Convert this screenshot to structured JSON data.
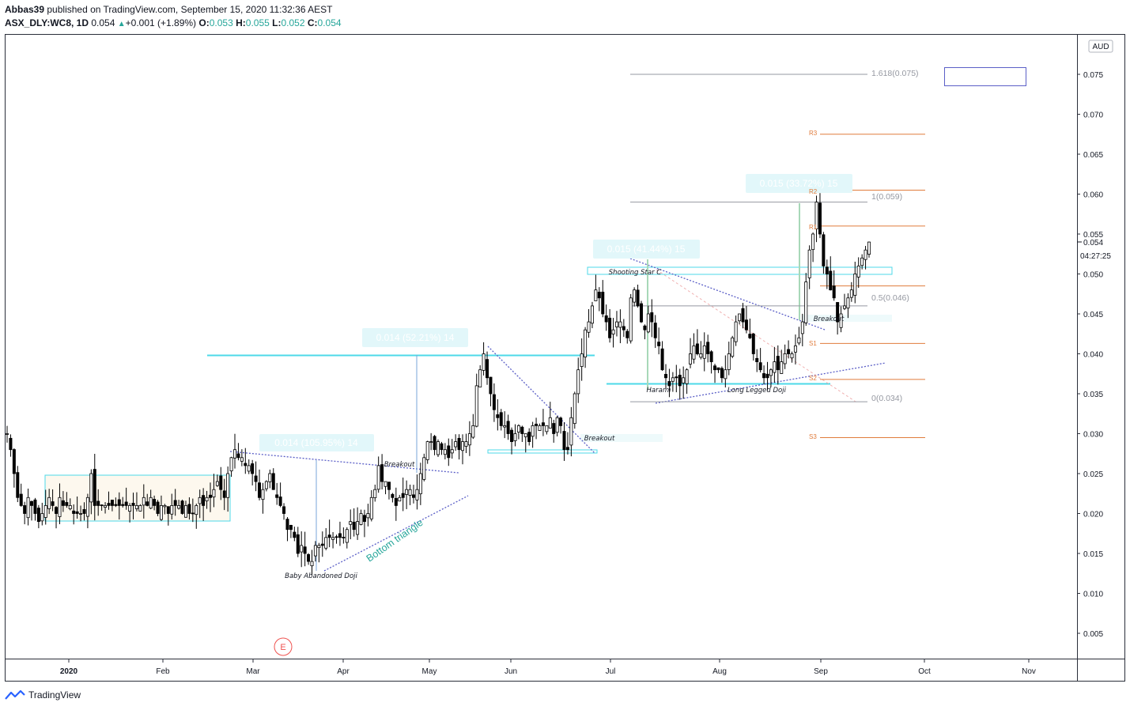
{
  "header": {
    "author": "Abbas39",
    "published_text": "published on TradingView.com, September 15, 2020 11:32:36 AEST",
    "symbol": "ASX_DLY:WC8, 1D",
    "last": "0.054",
    "change": "+0.001 (+1.89%)",
    "o_label": "O:",
    "o_val": "0.053",
    "h_label": "H:",
    "h_val": "0.055",
    "l_label": "L:",
    "l_val": "0.052",
    "c_label": "C:",
    "c_val": "0.054"
  },
  "footer": {
    "brand": "TradingView"
  },
  "colors": {
    "up": "#26a69a",
    "candle": "#000000",
    "cyan": "#4dd9e8",
    "pivot": "#e07b3b",
    "trend": "#5b5fc7"
  },
  "chart_data": {
    "type": "candlestick",
    "currency": "AUD",
    "ylim": [
      0.001,
      0.08
    ],
    "y_ticks": [
      "0.075",
      "0.070",
      "0.065",
      "0.060",
      "0.055",
      "0.050",
      "0.045",
      "0.040",
      "0.035",
      "0.030",
      "0.025",
      "0.020",
      "0.015",
      "0.010",
      "0.005"
    ],
    "x_ticks": [
      "2020",
      "Feb",
      "Mar",
      "Apr",
      "May",
      "Jun",
      "Jul",
      "Aug",
      "Sep",
      "Oct",
      "Nov"
    ],
    "last_price_label": "0.054",
    "countdown_label": "04:27:25",
    "earnings_marker": "E",
    "closes": [
      0.03,
      0.028,
      0.025,
      0.022,
      0.021,
      0.02,
      0.022,
      0.021,
      0.02,
      0.019,
      0.02,
      0.021,
      0.022,
      0.021,
      0.02,
      0.022,
      0.021,
      0.021,
      0.021,
      0.02,
      0.02,
      0.02,
      0.02,
      0.022,
      0.025,
      0.021,
      0.021,
      0.021,
      0.021,
      0.021,
      0.021,
      0.021,
      0.021,
      0.021,
      0.021,
      0.021,
      0.021,
      0.021,
      0.021,
      0.022,
      0.021,
      0.022,
      0.021,
      0.02,
      0.021,
      0.021,
      0.02,
      0.021,
      0.021,
      0.021,
      0.02,
      0.021,
      0.02,
      0.02,
      0.021,
      0.022,
      0.021,
      0.022,
      0.022,
      0.023,
      0.024,
      0.023,
      0.022,
      0.025,
      0.027,
      0.028,
      0.027,
      0.027,
      0.026,
      0.026,
      0.025,
      0.024,
      0.022,
      0.023,
      0.024,
      0.025,
      0.023,
      0.022,
      0.021,
      0.02,
      0.018,
      0.018,
      0.017,
      0.015,
      0.016,
      0.015,
      0.014,
      0.014,
      0.016,
      0.016,
      0.016,
      0.017,
      0.017,
      0.017,
      0.017,
      0.017,
      0.017,
      0.018,
      0.019,
      0.018,
      0.019,
      0.02,
      0.019,
      0.02,
      0.022,
      0.023,
      0.026,
      0.024,
      0.024,
      0.023,
      0.022,
      0.021,
      0.022,
      0.022,
      0.023,
      0.023,
      0.022,
      0.023,
      0.025,
      0.027,
      0.029,
      0.029,
      0.028,
      0.029,
      0.028,
      0.028,
      0.027,
      0.028,
      0.029,
      0.028,
      0.029,
      0.029,
      0.03,
      0.031,
      0.036,
      0.038,
      0.04,
      0.037,
      0.035,
      0.033,
      0.032,
      0.031,
      0.031,
      0.03,
      0.029,
      0.03,
      0.031,
      0.03,
      0.03,
      0.029,
      0.031,
      0.031,
      0.031,
      0.031,
      0.031,
      0.032,
      0.03,
      0.032,
      0.031,
      0.028,
      0.028,
      0.032,
      0.035,
      0.038,
      0.04,
      0.043,
      0.044,
      0.046,
      0.048,
      0.047,
      0.045,
      0.044,
      0.042,
      0.043,
      0.044,
      0.044,
      0.043,
      0.042,
      0.047,
      0.048,
      0.046,
      0.044,
      0.043,
      0.045,
      0.044,
      0.042,
      0.041,
      0.038,
      0.037,
      0.036,
      0.037,
      0.037,
      0.036,
      0.037,
      0.038,
      0.04,
      0.041,
      0.04,
      0.04,
      0.041,
      0.04,
      0.039,
      0.038,
      0.038,
      0.037,
      0.038,
      0.04,
      0.042,
      0.044,
      0.045,
      0.044,
      0.043,
      0.042,
      0.04,
      0.039,
      0.038,
      0.037,
      0.037,
      0.038,
      0.039,
      0.038,
      0.039,
      0.04,
      0.04,
      0.04,
      0.041,
      0.042,
      0.044,
      0.049,
      0.053,
      0.055,
      0.059,
      0.055,
      0.051,
      0.05,
      0.048,
      0.047,
      0.044,
      0.045,
      0.046,
      0.047,
      0.048,
      0.05,
      0.051,
      0.052,
      0.053,
      0.054
    ],
    "horizontal_levels": {
      "fib_1.618": 0.075,
      "fib_1": 0.059,
      "fib_0.5": 0.046,
      "fib_0": 0.034,
      "R3": 0.0675,
      "R2": 0.0605,
      "R1": 0.056,
      "pivot": 0.0485,
      "S1": 0.0413,
      "S2": 0.0368,
      "S3": 0.0295
    },
    "fib_labels": [
      "1.618(0.075)",
      "1(0.059)",
      "0.5(0.046)",
      "0(0.034)"
    ],
    "pivot_labels": [
      "R3",
      "R2",
      "R1",
      "S1",
      "S2",
      "S3"
    ],
    "measures": [
      "0.014 (105.95%) 14",
      "0.014 (52.21%) 14",
      "0.015 (41.44%) 15",
      "0.015 (33.72%) 15"
    ],
    "annotations": [
      "Baby Abandoned Doji",
      "Breakout",
      "Breakout",
      "Shooting Star C",
      "Harami",
      "Long Legged Doji",
      "Breakout",
      "Bottom triangle"
    ]
  }
}
